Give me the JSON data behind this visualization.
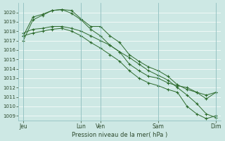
{
  "xlabel": "Pression niveau de la mer( hPa )",
  "ylim": [
    1008.5,
    1021.0
  ],
  "yticks": [
    1009,
    1010,
    1011,
    1012,
    1013,
    1014,
    1015,
    1016,
    1017,
    1018,
    1019,
    1020
  ],
  "bg_color": "#cde8e4",
  "grid_color": "#b8d8d4",
  "line_color": "#2d6b2d",
  "xtick_labels": [
    "Jeu",
    "Lun",
    "Ven",
    "Sam",
    "Dim"
  ],
  "xtick_positions": [
    0,
    6,
    8,
    14,
    20
  ],
  "xlim": [
    -0.5,
    20.5
  ],
  "lines": [
    [
      1017.0,
      1019.2,
      1019.7,
      1020.2,
      1020.3,
      1020.2,
      1019.3,
      1018.5,
      1018.5,
      1017.5,
      1016.8,
      1015.5,
      1014.8,
      1014.2,
      1013.8,
      1013.2,
      1012.3,
      1011.8,
      1011.5,
      1011.2,
      1011.5
    ],
    [
      1017.5,
      1019.5,
      1019.8,
      1020.2,
      1020.3,
      1019.9,
      1019.2,
      1018.2,
      1017.5,
      1016.5,
      1015.8,
      1014.5,
      1013.8,
      1013.2,
      1013.0,
      1012.5,
      1012.2,
      1012.0,
      1011.5,
      1010.8,
      1011.5
    ],
    [
      1017.8,
      1018.2,
      1018.3,
      1018.5,
      1018.5,
      1018.3,
      1018.0,
      1017.5,
      1017.0,
      1016.5,
      1015.8,
      1015.2,
      1014.5,
      1013.8,
      1013.3,
      1012.8,
      1012.0,
      1011.2,
      1010.3,
      1009.2,
      1008.8
    ],
    [
      1017.5,
      1017.8,
      1018.0,
      1018.2,
      1018.3,
      1018.0,
      1017.5,
      1016.8,
      1016.2,
      1015.5,
      1014.8,
      1013.8,
      1013.0,
      1012.5,
      1012.2,
      1011.8,
      1011.5,
      1010.0,
      1009.2,
      1008.7,
      1009.0
    ]
  ]
}
